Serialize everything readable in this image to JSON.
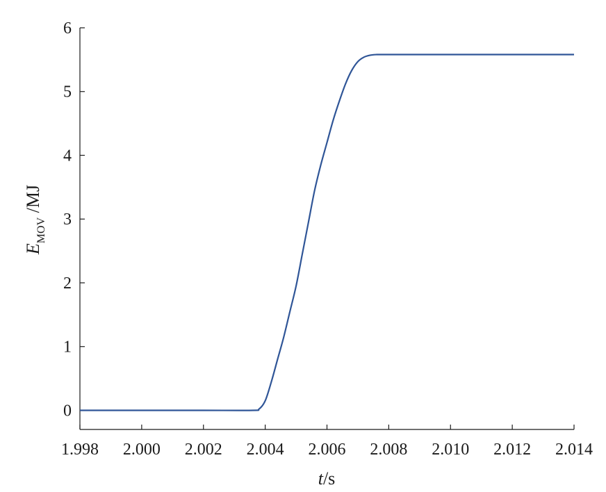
{
  "chart_data": {
    "type": "line",
    "xlabel_var": "t",
    "xlabel_unit": "/s",
    "ylabel_var": "E",
    "ylabel_sub": "MOV",
    "ylabel_unit": " /MJ",
    "xlim": [
      1.998,
      2.014
    ],
    "ylim": [
      -0.3,
      6
    ],
    "x_ticks": [
      1.998,
      2.0,
      2.002,
      2.004,
      2.006,
      2.008,
      2.01,
      2.012,
      2.014
    ],
    "x_tick_labels": [
      "1.998",
      "2.000",
      "2.002",
      "2.004",
      "2.006",
      "2.008",
      "2.010",
      "2.012",
      "2.014"
    ],
    "y_ticks": [
      0,
      1,
      2,
      3,
      4,
      5,
      6
    ],
    "y_tick_labels": [
      "0",
      "1",
      "2",
      "3",
      "4",
      "5",
      "6"
    ],
    "line_color": "#2f5597",
    "series": [
      {
        "x": [
          1.998,
          2.0,
          2.002,
          2.0036,
          2.0038,
          2.004,
          2.0042,
          2.0044,
          2.0046,
          2.0048,
          2.005,
          2.0052,
          2.0054,
          2.0056,
          2.0058,
          2.006,
          2.0062,
          2.0064,
          2.0066,
          2.0068,
          2.007,
          2.0072,
          2.0074,
          2.0076,
          2.0078,
          2.008,
          2.009,
          2.01,
          2.012,
          2.014
        ],
        "y": [
          0,
          0,
          0,
          0,
          0.02,
          0.15,
          0.45,
          0.8,
          1.15,
          1.55,
          1.95,
          2.45,
          2.95,
          3.45,
          3.85,
          4.2,
          4.55,
          4.85,
          5.12,
          5.33,
          5.47,
          5.54,
          5.57,
          5.58,
          5.58,
          5.58,
          5.58,
          5.58,
          5.58,
          5.58
        ]
      }
    ]
  }
}
